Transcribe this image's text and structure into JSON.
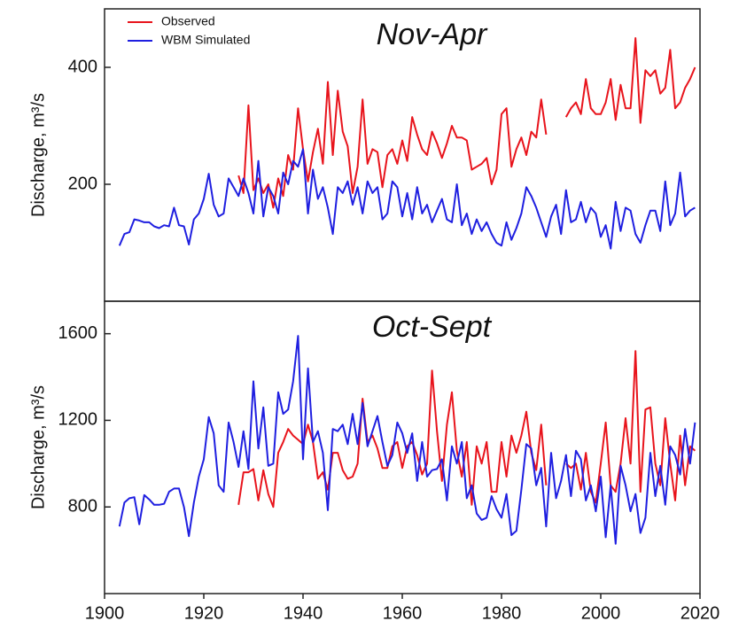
{
  "chart_data": [
    {
      "type": "line",
      "title": "Nov-Apr",
      "y_label": "Discharge, m³/s",
      "x": [
        1903,
        1904,
        1905,
        1906,
        1907,
        1908,
        1909,
        1910,
        1911,
        1912,
        1913,
        1914,
        1915,
        1916,
        1917,
        1918,
        1919,
        1920,
        1921,
        1922,
        1923,
        1924,
        1925,
        1926,
        1927,
        1928,
        1929,
        1930,
        1931,
        1932,
        1933,
        1934,
        1935,
        1936,
        1937,
        1938,
        1939,
        1940,
        1941,
        1942,
        1943,
        1944,
        1945,
        1946,
        1947,
        1948,
        1949,
        1950,
        1951,
        1952,
        1953,
        1954,
        1955,
        1956,
        1957,
        1958,
        1959,
        1960,
        1961,
        1962,
        1963,
        1964,
        1965,
        1966,
        1967,
        1968,
        1969,
        1970,
        1971,
        1972,
        1973,
        1974,
        1975,
        1976,
        1977,
        1978,
        1979,
        1980,
        1981,
        1982,
        1983,
        1984,
        1985,
        1986,
        1987,
        1988,
        1989,
        1990,
        1991,
        1992,
        1993,
        1994,
        1995,
        1996,
        1997,
        1998,
        1999,
        2000,
        2001,
        2002,
        2003,
        2004,
        2005,
        2006,
        2007,
        2008,
        2009,
        2010,
        2011,
        2012,
        2013,
        2014,
        2015,
        2016,
        2017,
        2018,
        2019
      ],
      "series": [
        {
          "name": "Observed",
          "color": "#e8141c",
          "values": [
            null,
            null,
            null,
            null,
            null,
            null,
            null,
            null,
            null,
            null,
            null,
            null,
            null,
            null,
            null,
            null,
            null,
            null,
            null,
            null,
            null,
            null,
            null,
            null,
            215,
            185,
            335,
            190,
            210,
            185,
            200,
            160,
            210,
            180,
            250,
            225,
            330,
            260,
            205,
            255,
            295,
            235,
            375,
            250,
            360,
            290,
            265,
            185,
            230,
            345,
            235,
            260,
            255,
            195,
            250,
            260,
            235,
            275,
            240,
            315,
            285,
            260,
            250,
            290,
            270,
            245,
            270,
            300,
            280,
            280,
            275,
            225,
            230,
            235,
            245,
            200,
            225,
            320,
            330,
            230,
            260,
            280,
            250,
            290,
            280,
            345,
            285,
            null,
            null,
            null,
            315,
            330,
            340,
            320,
            380,
            330,
            320,
            320,
            340,
            380,
            310,
            370,
            330,
            330,
            450,
            305,
            395,
            385,
            395,
            355,
            365,
            430,
            330,
            340,
            365,
            380,
            400
          ]
        },
        {
          "name": "WBM Simulated",
          "color": "#1f1fe0",
          "values": [
            95,
            115,
            118,
            140,
            138,
            135,
            135,
            128,
            125,
            130,
            128,
            160,
            130,
            128,
            97,
            140,
            150,
            175,
            218,
            165,
            145,
            150,
            210,
            195,
            180,
            210,
            185,
            150,
            240,
            145,
            195,
            180,
            150,
            220,
            200,
            240,
            230,
            260,
            150,
            225,
            175,
            195,
            160,
            115,
            195,
            185,
            205,
            165,
            195,
            150,
            205,
            185,
            195,
            140,
            150,
            205,
            195,
            145,
            185,
            140,
            195,
            150,
            165,
            135,
            155,
            175,
            140,
            135,
            200,
            130,
            150,
            115,
            140,
            120,
            135,
            115,
            100,
            95,
            135,
            105,
            125,
            150,
            195,
            180,
            160,
            135,
            110,
            145,
            165,
            115,
            190,
            135,
            140,
            170,
            135,
            160,
            150,
            110,
            130,
            90,
            170,
            120,
            160,
            155,
            115,
            100,
            130,
            155,
            155,
            120,
            205,
            130,
            150,
            220,
            145,
            155,
            160
          ]
        }
      ],
      "xlim": [
        1900,
        2020
      ],
      "ylim": [
        0,
        500
      ],
      "yticks": [
        200,
        400
      ]
    },
    {
      "type": "line",
      "title": "Oct-Sept",
      "y_label": "Discharge, m³/s",
      "x": [
        1903,
        1904,
        1905,
        1906,
        1907,
        1908,
        1909,
        1910,
        1911,
        1912,
        1913,
        1914,
        1915,
        1916,
        1917,
        1918,
        1919,
        1920,
        1921,
        1922,
        1923,
        1924,
        1925,
        1926,
        1927,
        1928,
        1929,
        1930,
        1931,
        1932,
        1933,
        1934,
        1935,
        1936,
        1937,
        1938,
        1939,
        1940,
        1941,
        1942,
        1943,
        1944,
        1945,
        1946,
        1947,
        1948,
        1949,
        1950,
        1951,
        1952,
        1953,
        1954,
        1955,
        1956,
        1957,
        1958,
        1959,
        1960,
        1961,
        1962,
        1963,
        1964,
        1965,
        1966,
        1967,
        1968,
        1969,
        1970,
        1971,
        1972,
        1973,
        1974,
        1975,
        1976,
        1977,
        1978,
        1979,
        1980,
        1981,
        1982,
        1983,
        1984,
        1985,
        1986,
        1987,
        1988,
        1989,
        1990,
        1991,
        1992,
        1993,
        1994,
        1995,
        1996,
        1997,
        1998,
        1999,
        2000,
        2001,
        2002,
        2003,
        2004,
        2005,
        2006,
        2007,
        2008,
        2009,
        2010,
        2011,
        2012,
        2013,
        2014,
        2015,
        2016,
        2017,
        2018,
        2019
      ],
      "series": [
        {
          "color": "#e8141c",
          "values": [
            null,
            null,
            null,
            null,
            null,
            null,
            null,
            null,
            null,
            null,
            null,
            null,
            null,
            null,
            null,
            null,
            null,
            null,
            null,
            null,
            null,
            null,
            null,
            null,
            810,
            960,
            960,
            975,
            830,
            970,
            860,
            800,
            1050,
            1100,
            1160,
            1130,
            1110,
            1090,
            1180,
            1100,
            930,
            960,
            880,
            1050,
            1050,
            970,
            930,
            940,
            1000,
            1300,
            1100,
            1130,
            1070,
            980,
            980,
            1080,
            1100,
            980,
            1080,
            1100,
            1040,
            950,
            1000,
            1430,
            1150,
            920,
            1180,
            1330,
            1060,
            940,
            1100,
            810,
            1080,
            1000,
            1100,
            870,
            870,
            1100,
            940,
            1130,
            1050,
            1130,
            1240,
            1050,
            970,
            1180,
            900,
            null,
            null,
            null,
            1000,
            980,
            1000,
            880,
            1050,
            870,
            820,
            1000,
            1190,
            900,
            870,
            1000,
            1210,
            1000,
            1520,
            870,
            1250,
            1260,
            1000,
            900,
            1210,
            1000,
            830,
            1130,
            900,
            1080,
            1060
          ]
        },
        {
          "color": "#1f1fe0",
          "values": [
            710,
            820,
            840,
            845,
            720,
            855,
            835,
            810,
            810,
            815,
            870,
            885,
            885,
            800,
            665,
            820,
            940,
            1020,
            1215,
            1140,
            900,
            870,
            1190,
            1100,
            985,
            1150,
            975,
            1380,
            1070,
            1260,
            990,
            1000,
            1330,
            1230,
            1250,
            1380,
            1590,
            1020,
            1440,
            1100,
            1150,
            1050,
            785,
            1160,
            1150,
            1180,
            1090,
            1230,
            1090,
            1280,
            1080,
            1150,
            1220,
            1100,
            990,
            1040,
            1190,
            1140,
            1050,
            1140,
            920,
            1100,
            940,
            970,
            975,
            1020,
            830,
            1080,
            1000,
            1100,
            840,
            900,
            770,
            740,
            750,
            850,
            790,
            750,
            860,
            670,
            690,
            880,
            1090,
            1070,
            900,
            980,
            710,
            1050,
            840,
            920,
            1040,
            850,
            1060,
            1020,
            830,
            900,
            780,
            940,
            660,
            900,
            630,
            990,
            900,
            780,
            860,
            680,
            750,
            1050,
            850,
            990,
            810,
            1080,
            1040,
            950,
            1160,
            1000,
            1190
          ]
        }
      ],
      "xlim": [
        1900,
        2020
      ],
      "ylim": [
        400,
        1750
      ],
      "yticks": [
        800,
        1200,
        1600
      ],
      "xticks": [
        1900,
        1920,
        1940,
        1960,
        1980,
        2000,
        2020
      ]
    }
  ]
}
